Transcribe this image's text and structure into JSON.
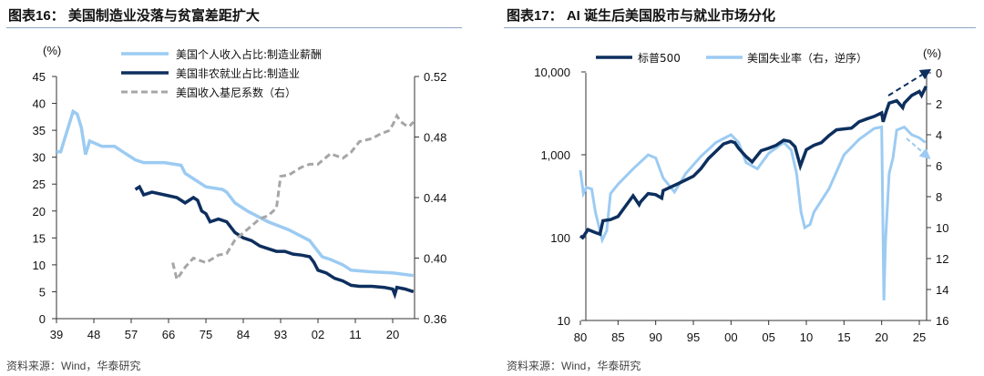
{
  "chart_data": [
    {
      "type": "line",
      "title": "图表16：  美国制造业没落与贫富差距扩大",
      "source": "资料来源：Wind，华泰研究",
      "ylabel": "(%)",
      "ylim": [
        0,
        45
      ],
      "y2lim": [
        0.36,
        0.52
      ],
      "xlim": [
        1939,
        2025.3
      ],
      "yticks": [
        "0",
        "5",
        "10",
        "15",
        "20",
        "25",
        "30",
        "35",
        "40",
        "45"
      ],
      "y2ticks": [
        "0.36",
        "0.40",
        "0.44",
        "0.48",
        "0.52"
      ],
      "xticks": [
        "39",
        "48",
        "57",
        "66",
        "75",
        "84",
        "93",
        "02",
        "11",
        "20"
      ],
      "series": [
        {
          "name": "美国个人收入占比:制造业薪酬",
          "color": "#0d2f5e",
          "axis": "left",
          "style": "solid",
          "x": [
            1958,
            1959,
            1960,
            1962,
            1965,
            1968,
            1970,
            1972,
            1973,
            1974,
            1975,
            1976,
            1978,
            1980,
            1982,
            1984,
            1986,
            1988,
            1990,
            1992,
            1994,
            1996,
            1998,
            2000,
            2001,
            2002,
            2004,
            2006,
            2008,
            2010,
            2012,
            2015,
            2018,
            2020,
            2020.5,
            2021,
            2023,
            2025
          ],
          "y": [
            24,
            24.5,
            23,
            23.5,
            23,
            22.5,
            21.5,
            22.5,
            22,
            20,
            19.5,
            18,
            18.5,
            18,
            16,
            15,
            14.5,
            13.5,
            13,
            12.5,
            12.5,
            12,
            11.8,
            11.5,
            10.5,
            9,
            8.5,
            7.5,
            7,
            6.2,
            6,
            6,
            5.8,
            5.5,
            4.5,
            5.8,
            5.5,
            5
          ]
        },
        {
          "name": "美国非农就业占比:制造业",
          "color": "#9ccbf2",
          "axis": "left",
          "style": "solid",
          "x": [
            1939,
            1940,
            1941,
            1942,
            1943,
            1944,
            1945,
            1946,
            1947,
            1950,
            1953,
            1955,
            1958,
            1960,
            1965,
            1969,
            1970,
            1975,
            1979,
            1980,
            1982,
            1985,
            1990,
            1995,
            2000,
            2001,
            2003,
            2005,
            2008,
            2010,
            2015,
            2020,
            2025
          ],
          "y": [
            31,
            31,
            33.5,
            36,
            38.5,
            38,
            35.5,
            30.5,
            33,
            32,
            32,
            31,
            29.5,
            29,
            29,
            28.5,
            27,
            24.5,
            24,
            23.5,
            21.5,
            20,
            18,
            16.5,
            14.5,
            13.5,
            11.5,
            11,
            10,
            9,
            8.7,
            8.5,
            8
          ]
        },
        {
          "name": "美国收入基尼系数（右）",
          "color": "#a6a6a6",
          "axis": "right",
          "style": "dashed",
          "x": [
            1967,
            1968,
            1970,
            1972,
            1975,
            1978,
            1980,
            1982,
            1985,
            1988,
            1990,
            1992,
            1993,
            1995,
            1998,
            2000,
            2002,
            2005,
            2008,
            2010,
            2012,
            2015,
            2017,
            2019,
            2020,
            2021,
            2022,
            2023,
            2024,
            2025
          ],
          "y": [
            0.397,
            0.386,
            0.394,
            0.4,
            0.397,
            0.402,
            0.403,
            0.412,
            0.419,
            0.426,
            0.428,
            0.433,
            0.454,
            0.455,
            0.46,
            0.462,
            0.462,
            0.469,
            0.466,
            0.47,
            0.477,
            0.479,
            0.482,
            0.484,
            0.488,
            0.494,
            0.49,
            0.488,
            0.487,
            0.49
          ]
        }
      ]
    },
    {
      "type": "line",
      "title": "图表17：  AI 诞生后美国股市与就业市场分化",
      "source": "资料来源：Wind，华泰研究",
      "y2label": "(%)",
      "yscale": "log",
      "ylim": [
        10,
        10000
      ],
      "y2lim": [
        16,
        0
      ],
      "xlim": [
        1980,
        2026.2
      ],
      "yticks": [
        "10",
        "100",
        "1,000",
        "10,000"
      ],
      "y2ticks": [
        "0",
        "2",
        "4",
        "6",
        "8",
        "10",
        "12",
        "14",
        "16"
      ],
      "xticks": [
        "80",
        "85",
        "90",
        "95",
        "00",
        "05",
        "10",
        "15",
        "20",
        "25"
      ],
      "series": [
        {
          "name": "标普500",
          "color": "#0d2f5e",
          "axis": "left",
          "x": [
            1980,
            1980.3,
            1981,
            1982,
            1982.6,
            1983,
            1984,
            1985,
            1986,
            1987,
            1987.8,
            1988,
            1989,
            1990,
            1990.8,
            1991,
            1993,
            1995,
            1996,
            1997,
            1998,
            1999,
            2000,
            2000.5,
            2001,
            2002,
            2002.8,
            2004,
            2005,
            2006,
            2007,
            2007.8,
            2008.5,
            2009.2,
            2010,
            2011,
            2012,
            2013,
            2014,
            2015,
            2016,
            2017,
            2018,
            2019,
            2020,
            2020.2,
            2020.6,
            2021,
            2022,
            2022.8,
            2023,
            2024,
            2025,
            2025.3,
            2025.9
          ],
          "y": [
            105,
            100,
            125,
            115,
            110,
            160,
            165,
            180,
            240,
            320,
            250,
            270,
            340,
            330,
            300,
            370,
            450,
            550,
            680,
            900,
            1100,
            1350,
            1450,
            1400,
            1200,
            950,
            820,
            1120,
            1200,
            1300,
            1500,
            1450,
            1250,
            730,
            1150,
            1300,
            1400,
            1700,
            2000,
            2050,
            2100,
            2500,
            2700,
            2900,
            3200,
            2500,
            3300,
            4200,
            4500,
            3700,
            4200,
            5200,
            5800,
            5200,
            6700
          ]
        },
        {
          "name": "美国失业率（右，逆序）",
          "color": "#9ccbf2",
          "axis": "right",
          "x": [
            1980,
            1980.4,
            1980.8,
            1981.5,
            1982,
            1982.9,
            1983.5,
            1984,
            1985,
            1987,
            1989,
            1990,
            1991,
            1992.5,
            1994,
            1996,
            1998,
            2000,
            2001,
            2002,
            2003.5,
            2005,
            2007,
            2008,
            2008.7,
            2009.3,
            2009.8,
            2010.5,
            2011,
            2013,
            2015,
            2017,
            2019,
            2020,
            2020.3,
            2020.5,
            2021,
            2021.5,
            2022,
            2023,
            2024,
            2025,
            2025.8
          ],
          "y": [
            6.3,
            7.8,
            7.4,
            7.5,
            9,
            10.8,
            10.2,
            7.8,
            7.2,
            6.2,
            5.3,
            5.5,
            6.8,
            7.7,
            6.5,
            5.4,
            4.5,
            4.0,
            4.5,
            5.8,
            6.2,
            5.2,
            4.5,
            5,
            6.5,
            9,
            10,
            9.8,
            9,
            7.5,
            5.3,
            4.3,
            3.6,
            3.5,
            14.7,
            11,
            6.5,
            5.5,
            3.7,
            3.5,
            4.0,
            4.2,
            4.5
          ]
        }
      ],
      "annotations": [
        "dashed arrow: S&P 500 upward trend",
        "dashed arrow: unemployment rising (down on inverted axis)"
      ]
    }
  ]
}
